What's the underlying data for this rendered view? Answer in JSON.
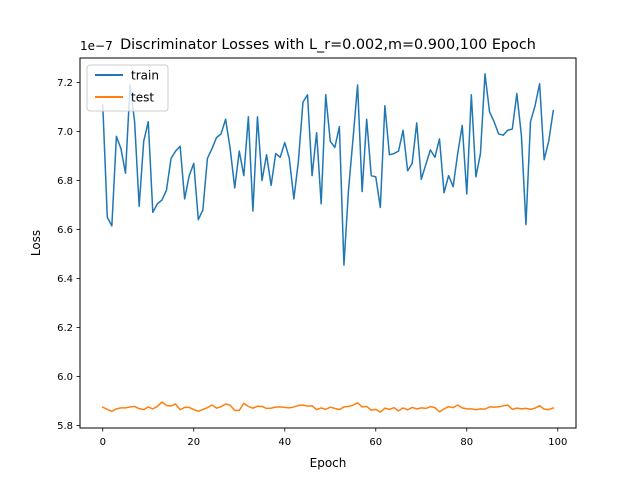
{
  "chart_data": {
    "type": "line",
    "title": "Discriminator Losses with L_r=0.002,m=0.900,100 Epoch",
    "xlabel": "Epoch",
    "ylabel": "Loss",
    "offset_text": "1e−7",
    "xlim": [
      -5,
      104
    ],
    "ylim": [
      5.79,
      7.3
    ],
    "xticks": [
      0,
      20,
      40,
      60,
      80,
      100
    ],
    "yticks": [
      5.8,
      6.0,
      6.2,
      6.4,
      6.6,
      6.8,
      7.0,
      7.2
    ],
    "xtick_labels": [
      "0",
      "20",
      "40",
      "60",
      "80",
      "100"
    ],
    "ytick_labels": [
      "5.8",
      "6.0",
      "6.2",
      "6.4",
      "6.6",
      "6.8",
      "7.0",
      "7.2"
    ],
    "grid": false,
    "legend_position": "top-left",
    "series": [
      {
        "name": "train",
        "color": "#1f77b4",
        "values": [
          7.11,
          6.65,
          6.615,
          6.98,
          6.93,
          6.83,
          7.19,
          7.04,
          6.695,
          6.96,
          7.04,
          6.67,
          6.705,
          6.72,
          6.76,
          6.89,
          6.92,
          6.94,
          6.725,
          6.82,
          6.87,
          6.64,
          6.68,
          6.89,
          6.93,
          6.975,
          6.99,
          7.05,
          6.93,
          6.77,
          6.92,
          6.82,
          7.06,
          6.675,
          7.06,
          6.8,
          6.905,
          6.78,
          6.91,
          6.895,
          6.955,
          6.89,
          6.725,
          6.88,
          7.12,
          7.15,
          6.82,
          6.995,
          6.705,
          7.15,
          6.96,
          6.935,
          7.02,
          6.455,
          6.76,
          6.97,
          7.19,
          6.755,
          7.05,
          6.82,
          6.815,
          6.69,
          7.105,
          6.905,
          6.91,
          6.92,
          7.005,
          6.84,
          6.87,
          7.035,
          6.805,
          6.865,
          6.925,
          6.895,
          6.97,
          6.75,
          6.82,
          6.775,
          6.91,
          7.025,
          6.745,
          7.15,
          6.815,
          6.91,
          7.235,
          7.08,
          7.04,
          6.99,
          6.985,
          7.005,
          7.01,
          7.155,
          6.985,
          6.62,
          7.04,
          7.105,
          7.195,
          6.885,
          6.96,
          7.085
        ]
      },
      {
        "name": "test",
        "color": "#ff7f0e",
        "values": [
          5.875,
          5.866,
          5.858,
          5.868,
          5.872,
          5.872,
          5.876,
          5.878,
          5.869,
          5.865,
          5.876,
          5.868,
          5.878,
          5.896,
          5.882,
          5.88,
          5.888,
          5.865,
          5.874,
          5.874,
          5.865,
          5.858,
          5.866,
          5.873,
          5.884,
          5.871,
          5.877,
          5.888,
          5.883,
          5.862,
          5.862,
          5.891,
          5.878,
          5.871,
          5.879,
          5.878,
          5.87,
          5.871,
          5.875,
          5.876,
          5.874,
          5.872,
          5.876,
          5.882,
          5.884,
          5.879,
          5.881,
          5.865,
          5.872,
          5.866,
          5.875,
          5.87,
          5.865,
          5.876,
          5.878,
          5.883,
          5.893,
          5.876,
          5.878,
          5.863,
          5.866,
          5.855,
          5.871,
          5.866,
          5.873,
          5.86,
          5.872,
          5.864,
          5.874,
          5.868,
          5.872,
          5.87,
          5.877,
          5.873,
          5.856,
          5.868,
          5.877,
          5.873,
          5.884,
          5.872,
          5.868,
          5.868,
          5.865,
          5.868,
          5.867,
          5.876,
          5.875,
          5.876,
          5.88,
          5.884,
          5.866,
          5.871,
          5.868,
          5.87,
          5.866,
          5.871,
          5.881,
          5.867,
          5.865,
          5.872
        ]
      }
    ]
  }
}
